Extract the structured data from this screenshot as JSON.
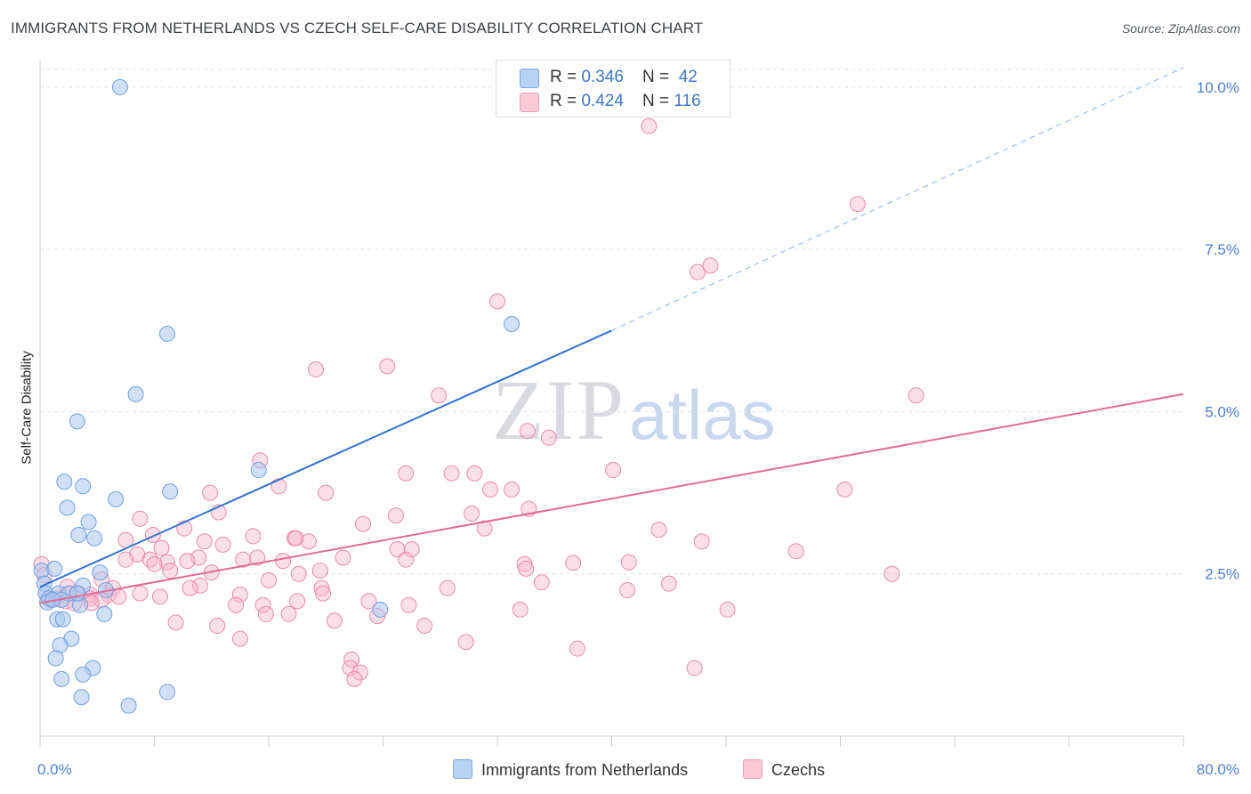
{
  "title": "IMMIGRANTS FROM NETHERLANDS VS CZECH SELF-CARE DISABILITY CORRELATION CHART",
  "source": "Source: ZipAtlas.com",
  "watermark": {
    "zip": "ZIP",
    "atlas": "atlas"
  },
  "legend": {
    "rows": [
      {
        "r_label": "R = ",
        "r_value": "0.346",
        "n_label": "N = ",
        "n_value": "42"
      },
      {
        "r_label": "R = ",
        "r_value": "0.424",
        "n_label": "N = ",
        "n_value": "116"
      }
    ]
  },
  "bottom_legend": {
    "series1": "Immigrants from Netherlands",
    "series2": "Czechs"
  },
  "colors": {
    "blue_fill": "#a9c7f0",
    "blue_stroke": "#6f9fdf",
    "blue_line": "#2f72d0",
    "pink_fill": "#f6b9cd",
    "pink_stroke": "#e98aaa",
    "pink_line": "#e06b96",
    "tick_text": "#4a7fd0",
    "grid": "#dfe3e8"
  },
  "chart_data": {
    "type": "scatter",
    "title": "IMMIGRANTS FROM NETHERLANDS VS CZECH SELF-CARE DISABILITY CORRELATION CHART",
    "xlabel": "",
    "ylabel": "Self-Care Disability",
    "xlim": [
      0,
      80
    ],
    "ylim": [
      0,
      10.3
    ],
    "x_tick_labels": [
      "0.0%",
      "80.0%"
    ],
    "y_ticks": [
      2.5,
      5.0,
      7.5,
      10.0
    ],
    "y_tick_labels": [
      "2.5%",
      "5.0%",
      "7.5%",
      "10.0%"
    ],
    "grid": true,
    "legend_position": "top-center",
    "series": [
      {
        "name": "Immigrants from Netherlands",
        "R": 0.346,
        "N": 42,
        "trend": {
          "x0": 0,
          "y0": 2.3,
          "x1": 40,
          "y1": 6.25,
          "dashed_to_x": 80,
          "dashed_to_y": 10.3
        },
        "points": [
          [
            5.6,
            10.0
          ],
          [
            8.9,
            6.2
          ],
          [
            33.0,
            6.35
          ],
          [
            6.7,
            5.27
          ],
          [
            2.6,
            4.85
          ],
          [
            15.3,
            4.1
          ],
          [
            1.7,
            3.92
          ],
          [
            3.0,
            3.85
          ],
          [
            9.1,
            3.77
          ],
          [
            5.3,
            3.65
          ],
          [
            1.9,
            3.52
          ],
          [
            3.4,
            3.3
          ],
          [
            2.7,
            3.1
          ],
          [
            3.8,
            3.05
          ],
          [
            0.1,
            2.55
          ],
          [
            4.2,
            2.52
          ],
          [
            1.0,
            2.58
          ],
          [
            0.3,
            2.35
          ],
          [
            3.0,
            2.32
          ],
          [
            0.4,
            2.2
          ],
          [
            1.3,
            2.2
          ],
          [
            2.0,
            2.2
          ],
          [
            4.6,
            2.25
          ],
          [
            0.6,
            2.12
          ],
          [
            1.5,
            2.1
          ],
          [
            0.5,
            2.06
          ],
          [
            0.9,
            2.1
          ],
          [
            2.8,
            2.02
          ],
          [
            2.6,
            2.2
          ],
          [
            23.8,
            1.95
          ],
          [
            4.5,
            1.88
          ],
          [
            1.2,
            1.8
          ],
          [
            1.6,
            1.8
          ],
          [
            2.2,
            1.5
          ],
          [
            1.4,
            1.4
          ],
          [
            1.1,
            1.2
          ],
          [
            3.7,
            1.05
          ],
          [
            3.0,
            0.95
          ],
          [
            1.5,
            0.88
          ],
          [
            2.9,
            0.6
          ],
          [
            8.9,
            0.68
          ],
          [
            6.2,
            0.47
          ]
        ]
      },
      {
        "name": "Czechs",
        "R": 0.424,
        "N": 116,
        "trend": {
          "x0": 0,
          "y0": 2.05,
          "x1": 80,
          "y1": 5.27
        },
        "points": [
          [
            42.6,
            9.4
          ],
          [
            57.2,
            8.2
          ],
          [
            46.0,
            7.15
          ],
          [
            46.9,
            7.25
          ],
          [
            32.0,
            6.7
          ],
          [
            19.3,
            5.65
          ],
          [
            24.3,
            5.7
          ],
          [
            27.9,
            5.25
          ],
          [
            61.3,
            5.25
          ],
          [
            34.1,
            4.7
          ],
          [
            35.6,
            4.6
          ],
          [
            15.4,
            4.25
          ],
          [
            25.6,
            4.05
          ],
          [
            28.8,
            4.05
          ],
          [
            30.4,
            4.05
          ],
          [
            40.1,
            4.1
          ],
          [
            16.7,
            3.85
          ],
          [
            31.5,
            3.8
          ],
          [
            33.0,
            3.8
          ],
          [
            56.3,
            3.8
          ],
          [
            11.9,
            3.75
          ],
          [
            20.0,
            3.75
          ],
          [
            34.2,
            3.5
          ],
          [
            30.2,
            3.43
          ],
          [
            24.9,
            3.4
          ],
          [
            12.5,
            3.45
          ],
          [
            7.0,
            3.35
          ],
          [
            22.6,
            3.27
          ],
          [
            31.1,
            3.2
          ],
          [
            10.1,
            3.2
          ],
          [
            43.3,
            3.18
          ],
          [
            7.9,
            3.1
          ],
          [
            14.9,
            3.08
          ],
          [
            17.8,
            3.05
          ],
          [
            17.9,
            3.05
          ],
          [
            6.0,
            3.02
          ],
          [
            18.8,
            3.0
          ],
          [
            11.5,
            3.0
          ],
          [
            12.8,
            2.95
          ],
          [
            25.0,
            2.88
          ],
          [
            46.3,
            3.0
          ],
          [
            52.9,
            2.85
          ],
          [
            8.5,
            2.9
          ],
          [
            15.2,
            2.75
          ],
          [
            6.8,
            2.8
          ],
          [
            11.1,
            2.75
          ],
          [
            7.7,
            2.72
          ],
          [
            21.2,
            2.75
          ],
          [
            25.6,
            2.72
          ],
          [
            17.0,
            2.7
          ],
          [
            8.9,
            2.68
          ],
          [
            10.3,
            2.7
          ],
          [
            14.2,
            2.72
          ],
          [
            33.9,
            2.65
          ],
          [
            37.3,
            2.67
          ],
          [
            41.2,
            2.68
          ],
          [
            6.0,
            2.72
          ],
          [
            8.0,
            2.65
          ],
          [
            19.6,
            2.55
          ],
          [
            34.0,
            2.58
          ],
          [
            9.1,
            2.55
          ],
          [
            12.0,
            2.52
          ],
          [
            18.1,
            2.5
          ],
          [
            16.0,
            2.4
          ],
          [
            59.6,
            2.5
          ],
          [
            0.1,
            2.65
          ],
          [
            0.3,
            2.48
          ],
          [
            4.3,
            2.42
          ],
          [
            11.2,
            2.32
          ],
          [
            19.7,
            2.28
          ],
          [
            35.1,
            2.37
          ],
          [
            44.0,
            2.35
          ],
          [
            1.9,
            2.3
          ],
          [
            5.1,
            2.28
          ],
          [
            10.5,
            2.28
          ],
          [
            28.5,
            2.28
          ],
          [
            41.1,
            2.25
          ],
          [
            19.8,
            2.2
          ],
          [
            8.4,
            2.15
          ],
          [
            14.0,
            2.18
          ],
          [
            3.5,
            2.18
          ],
          [
            4.8,
            2.18
          ],
          [
            7.0,
            2.2
          ],
          [
            1.2,
            2.12
          ],
          [
            3.5,
            2.12
          ],
          [
            4.3,
            2.1
          ],
          [
            1.8,
            2.08
          ],
          [
            2.4,
            2.05
          ],
          [
            0.7,
            2.1
          ],
          [
            23.0,
            2.08
          ],
          [
            18.0,
            2.08
          ],
          [
            15.6,
            2.02
          ],
          [
            13.7,
            2.02
          ],
          [
            25.8,
            2.02
          ],
          [
            33.6,
            1.95
          ],
          [
            48.1,
            1.95
          ],
          [
            15.8,
            1.88
          ],
          [
            17.4,
            1.88
          ],
          [
            23.6,
            1.85
          ],
          [
            20.6,
            1.78
          ],
          [
            9.5,
            1.75
          ],
          [
            12.4,
            1.7
          ],
          [
            26.9,
            1.7
          ],
          [
            14.0,
            1.5
          ],
          [
            29.8,
            1.45
          ],
          [
            37.6,
            1.35
          ],
          [
            21.8,
            1.18
          ],
          [
            21.7,
            1.05
          ],
          [
            22.4,
            0.98
          ],
          [
            22.0,
            0.88
          ],
          [
            45.8,
            1.05
          ],
          [
            2.1,
            2.2
          ],
          [
            3.6,
            2.05
          ],
          [
            2.7,
            2.2
          ],
          [
            5.5,
            2.15
          ],
          [
            26.0,
            2.88
          ]
        ]
      }
    ]
  }
}
